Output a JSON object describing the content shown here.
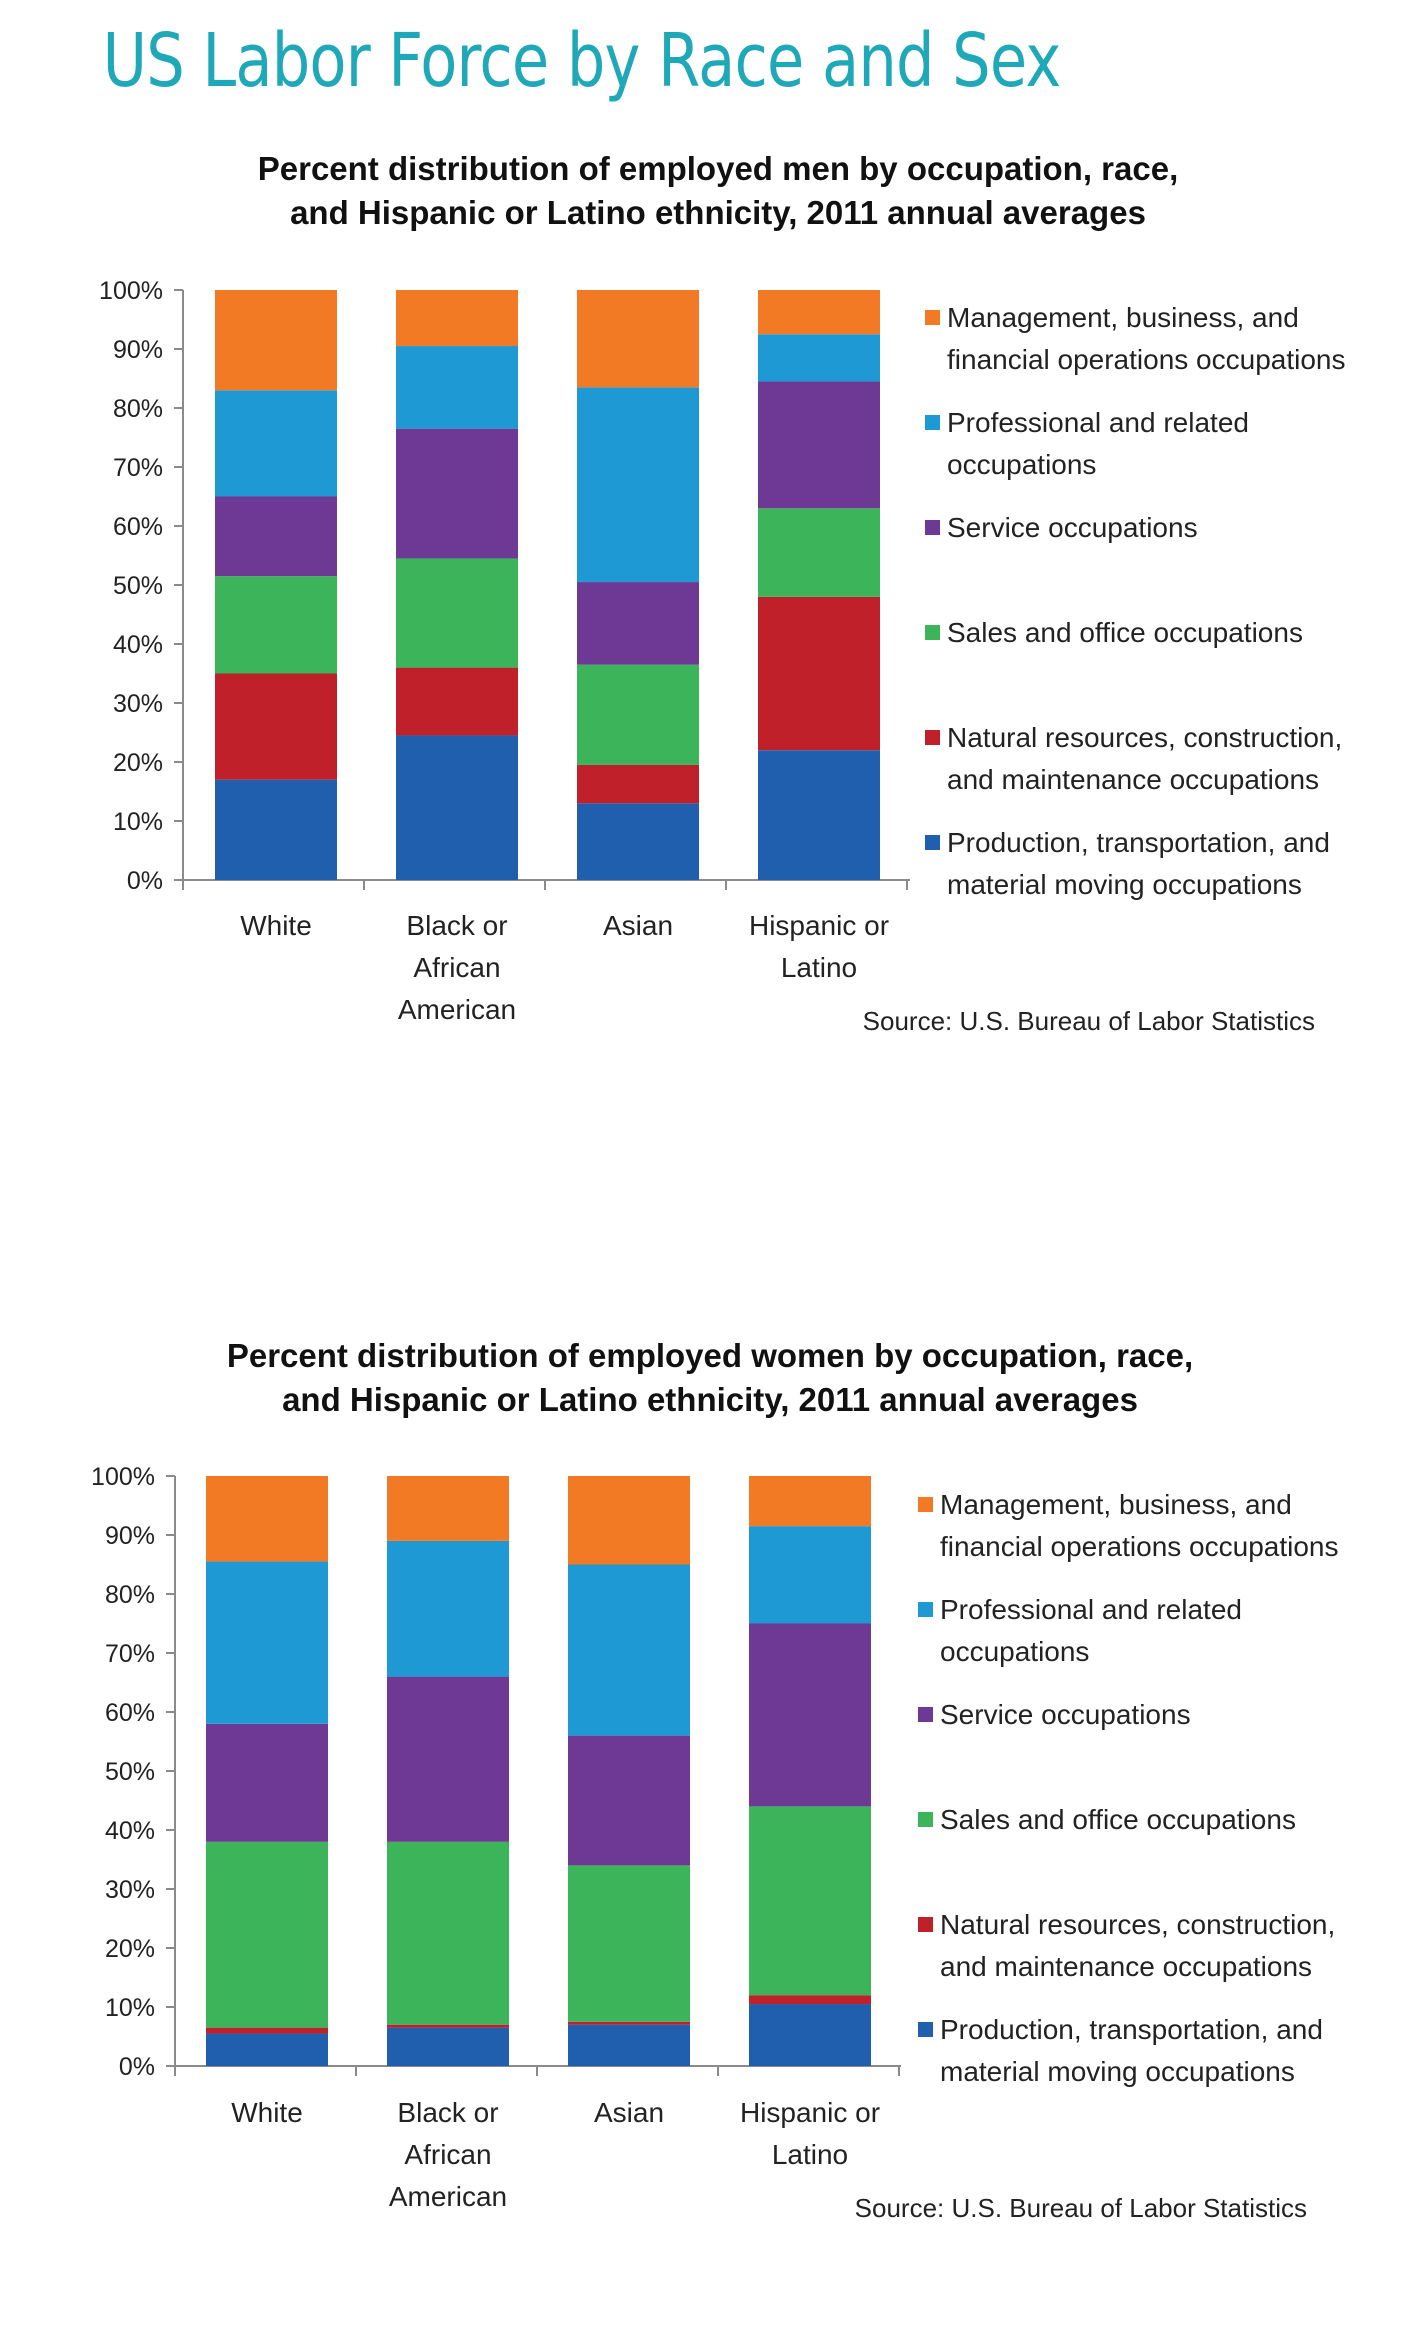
{
  "page_title": "US Labor Force by Race and Sex",
  "chart_data": [
    {
      "type": "bar",
      "stacked": true,
      "title_lines": [
        "Percent distribution of employed men by occupation, race,",
        "and Hispanic or Latino ethnicity, 2011 annual averages"
      ],
      "categories": [
        "White",
        "Black or African American",
        "Asian",
        "Hispanic or Latino"
      ],
      "category_label_lines": [
        [
          "White"
        ],
        [
          "Black or",
          "African",
          "American"
        ],
        [
          "Asian"
        ],
        [
          "Hispanic or",
          "Latino"
        ]
      ],
      "ylim": [
        0,
        100
      ],
      "yticks": [
        "0%",
        "10%",
        "20%",
        "30%",
        "40%",
        "50%",
        "60%",
        "70%",
        "80%",
        "90%",
        "100%"
      ],
      "grid": false,
      "legend_position": "right",
      "series": [
        {
          "name": "Production, transportation, and material moving occupations",
          "name_lines": [
            "Production, transportation, and",
            "material moving occupations"
          ],
          "color": "#1f5fae",
          "values": [
            17,
            24.5,
            13,
            22
          ]
        },
        {
          "name": "Natural resources, construction, and maintenance occupations",
          "name_lines": [
            "Natural resources, construction,",
            "and maintenance occupations"
          ],
          "color": "#c0202a",
          "values": [
            18,
            11.5,
            6.5,
            26
          ]
        },
        {
          "name": "Sales and office occupations",
          "name_lines": [
            "Sales and office occupations"
          ],
          "color": "#3cb45a",
          "values": [
            16.5,
            18.5,
            17,
            15
          ]
        },
        {
          "name": "Service occupations",
          "name_lines": [
            "Service occupations"
          ],
          "color": "#6e3895",
          "values": [
            13.5,
            22,
            14,
            21.5
          ]
        },
        {
          "name": "Professional and related occupations",
          "name_lines": [
            "Professional and related",
            "occupations"
          ],
          "color": "#1f99d4",
          "values": [
            18,
            14,
            33,
            8
          ]
        },
        {
          "name": "Management, business, and financial operations occupations",
          "name_lines": [
            "Management, business, and",
            "financial operations occupations"
          ],
          "color": "#f27a25",
          "values": [
            17,
            9.5,
            16.5,
            7.5
          ]
        }
      ],
      "source": "Source: U.S. Bureau of Labor Statistics"
    },
    {
      "type": "bar",
      "stacked": true,
      "title_lines": [
        "Percent distribution of employed women by occupation, race,",
        "and Hispanic or Latino ethnicity, 2011 annual averages"
      ],
      "categories": [
        "White",
        "Black or African American",
        "Asian",
        "Hispanic or Latino"
      ],
      "category_label_lines": [
        [
          "White"
        ],
        [
          "Black or",
          "African",
          "American"
        ],
        [
          "Asian"
        ],
        [
          "Hispanic or",
          "Latino"
        ]
      ],
      "ylim": [
        0,
        100
      ],
      "yticks": [
        "0%",
        "10%",
        "20%",
        "30%",
        "40%",
        "50%",
        "60%",
        "70%",
        "80%",
        "90%",
        "100%"
      ],
      "grid": false,
      "legend_position": "right",
      "series": [
        {
          "name": "Production, transportation, and material moving occupations",
          "name_lines": [
            "Production, transportation, and",
            "material moving occupations"
          ],
          "color": "#1f5fae",
          "values": [
            5.5,
            6.5,
            7,
            10.5
          ]
        },
        {
          "name": "Natural resources, construction, and maintenance occupations",
          "name_lines": [
            "Natural resources, construction,",
            "and maintenance occupations"
          ],
          "color": "#c0202a",
          "values": [
            1,
            0.5,
            0.5,
            1.5
          ]
        },
        {
          "name": "Sales and office occupations",
          "name_lines": [
            "Sales and office occupations"
          ],
          "color": "#3cb45a",
          "values": [
            31.5,
            31,
            26.5,
            32
          ]
        },
        {
          "name": "Service occupations",
          "name_lines": [
            "Service occupations"
          ],
          "color": "#6e3895",
          "values": [
            20,
            28,
            22,
            31
          ]
        },
        {
          "name": "Professional and related occupations",
          "name_lines": [
            "Professional and related",
            "occupations"
          ],
          "color": "#1f99d4",
          "values": [
            27.5,
            23,
            29,
            16.5
          ]
        },
        {
          "name": "Management, business, and financial operations occupations",
          "name_lines": [
            "Management, business, and",
            "financial operations occupations"
          ],
          "color": "#f27a25",
          "values": [
            14.5,
            11,
            15,
            8.5
          ]
        }
      ],
      "source": "Source: U.S. Bureau of Labor Statistics"
    }
  ]
}
